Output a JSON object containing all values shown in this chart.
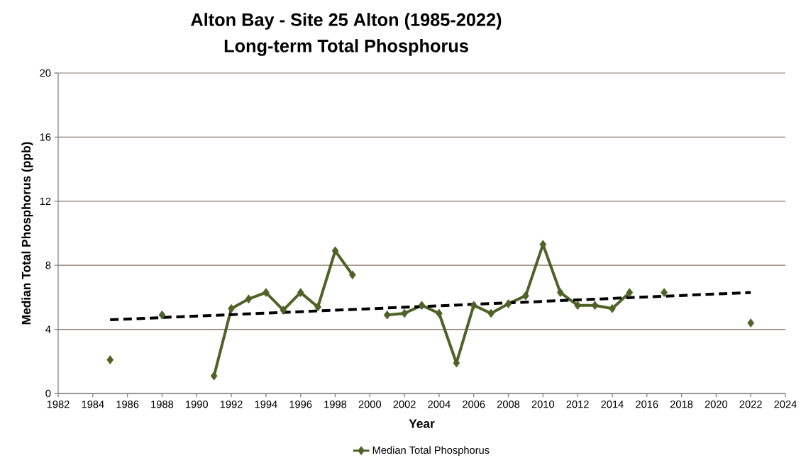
{
  "chart_data": {
    "type": "line",
    "title": "Alton Bay - Site 25 Alton (1985-2022)",
    "subtitle": "Long-term Total Phosphorus",
    "xlabel": "Year",
    "ylabel": "Median Total Phosphorus (ppb)",
    "x": [
      1985,
      1986,
      1987,
      1988,
      1989,
      1990,
      1991,
      1992,
      1993,
      1994,
      1995,
      1996,
      1997,
      1998,
      1999,
      2000,
      2001,
      2002,
      2003,
      2004,
      2005,
      2006,
      2007,
      2008,
      2009,
      2010,
      2011,
      2012,
      2013,
      2014,
      2015,
      2016,
      2017,
      2018,
      2019,
      2020,
      2021,
      2022
    ],
    "series": [
      {
        "name": "Median Total Phosphorus",
        "color": "#4f6228",
        "values": [
          2.1,
          null,
          null,
          4.9,
          null,
          null,
          1.1,
          5.3,
          5.9,
          6.3,
          5.2,
          6.3,
          5.4,
          8.9,
          7.4,
          null,
          4.9,
          5.0,
          5.5,
          5.0,
          1.9,
          5.5,
          5.0,
          5.6,
          6.1,
          9.3,
          6.3,
          5.5,
          5.5,
          5.3,
          6.3,
          null,
          6.3,
          null,
          null,
          null,
          null,
          4.4
        ]
      },
      {
        "type": "line",
        "x": [
          1985,
          2022
        ],
        "values": [
          4.6,
          6.3
        ],
        "color": "#000000",
        "line_style": "dashed",
        "marker": "none"
      }
    ],
    "xlim": [
      1982,
      2024
    ],
    "xticks": [
      1982,
      1984,
      1986,
      1988,
      1990,
      1992,
      1994,
      1996,
      1998,
      2000,
      2002,
      2004,
      2006,
      2008,
      2010,
      2012,
      2014,
      2016,
      2018,
      2020,
      2022,
      2024
    ],
    "ylim": [
      0,
      20
    ],
    "yticks": [
      0,
      4,
      8,
      12,
      16,
      20
    ],
    "grid": "y",
    "legend": "bottom",
    "marker": "diamond",
    "line_style": "solid"
  }
}
